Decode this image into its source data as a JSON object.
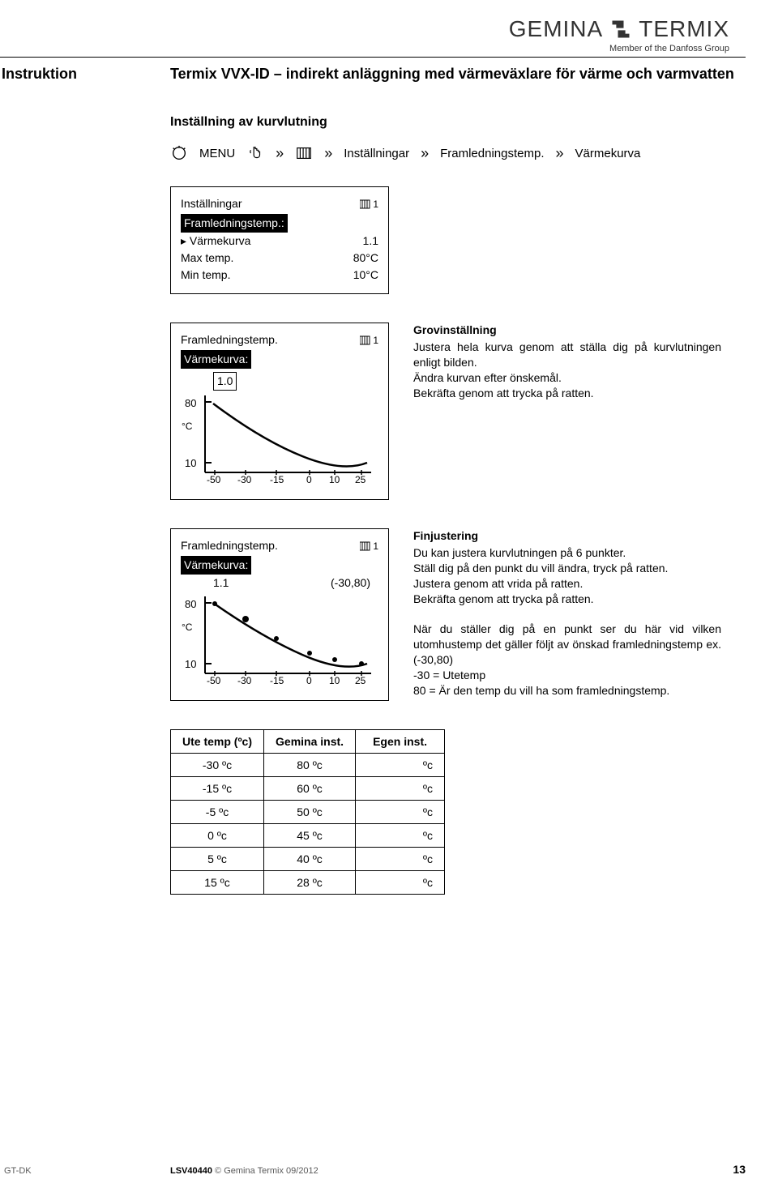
{
  "brand": {
    "name_left": "GEMINA",
    "name_right": "TERMIX",
    "subtitle": "Member of the Danfoss Group"
  },
  "header": {
    "doc_type": "Instruktion",
    "doc_title": "Termix VVX-ID – indirekt anläggning med värmeväxlare för värme och varmvatten"
  },
  "section_title": "Inställning av kurvlutning",
  "breadcrumb": {
    "menu": "MENU",
    "sep": "»",
    "step3": "Inställningar",
    "step4": "Framledningstemp.",
    "step5": "Värmekurva"
  },
  "lcd1": {
    "title": "Inställningar",
    "badge": "1",
    "highlight": "Framledningstemp.:",
    "rows": [
      {
        "label": "▸ Värmekurva",
        "value": "1.1"
      },
      {
        "label": "  Max temp.",
        "value": "80°C"
      },
      {
        "label": "  Min temp.",
        "value": "10°C"
      }
    ]
  },
  "lcd2": {
    "title": "Framledningstemp.",
    "badge": "1",
    "highlight": "Värmekurva:",
    "boxed_value": "1.0",
    "y_top": "80",
    "y_bot": "10",
    "y_unit": "°C",
    "x_ticks": [
      "-50",
      "-30",
      "-15",
      "0",
      "10",
      "25"
    ]
  },
  "lcd3": {
    "title": "Framledningstemp.",
    "badge": "1",
    "highlight": "Värmekurva:",
    "left_val": "1.1",
    "right_val": "(-30,80)",
    "y_top": "80",
    "y_bot": "10",
    "y_unit": "°C",
    "x_ticks": [
      "-50",
      "-30",
      "-15",
      "0",
      "10",
      "25"
    ]
  },
  "desc1": {
    "title": "Grovinställning",
    "lines": [
      "Justera hela kurva genom att ställa dig på kurvlutningen enligt bilden.",
      "Ändra kurvan efter önskemål.",
      "Bekräfta genom att trycka på ratten."
    ]
  },
  "desc2": {
    "title": "Finjustering",
    "lines": [
      "Du kan justera kurvlutningen på 6 punkter.",
      "Ställ dig på den punkt du vill ändra, tryck på ratten.",
      "Justera genom att vrida på ratten.",
      "Bekräfta genom att trycka på ratten."
    ],
    "extra": [
      "När du ställer dig på en punkt ser du här vid vilken utomhustemp det gäller följt av önskad framledningstemp ex. (-30,80)",
      "-30 = Utetemp",
      "80 = Är den temp du vill ha som framledningstemp."
    ]
  },
  "table": {
    "headers": [
      "Ute temp (ºc)",
      "Gemina inst.",
      "Egen inst."
    ],
    "rows": [
      [
        "-30 ºc",
        "80 ºc",
        "ºc"
      ],
      [
        "-15 ºc",
        "60 ºc",
        "ºc"
      ],
      [
        "-5 ºc",
        "50 ºc",
        "ºc"
      ],
      [
        "0 ºc",
        "45 ºc",
        "ºc"
      ],
      [
        "5 ºc",
        "40 ºc",
        "ºc"
      ],
      [
        "15 ºc",
        "28 ºc",
        "ºc"
      ]
    ]
  },
  "footer": {
    "left": "GT-DK",
    "code": "LSV40440",
    "copyright": "© Gemina Termix 09/2012",
    "page": "13"
  },
  "colors": {
    "text": "#000000",
    "bg": "#ffffff",
    "muted": "#5a5a5a"
  }
}
